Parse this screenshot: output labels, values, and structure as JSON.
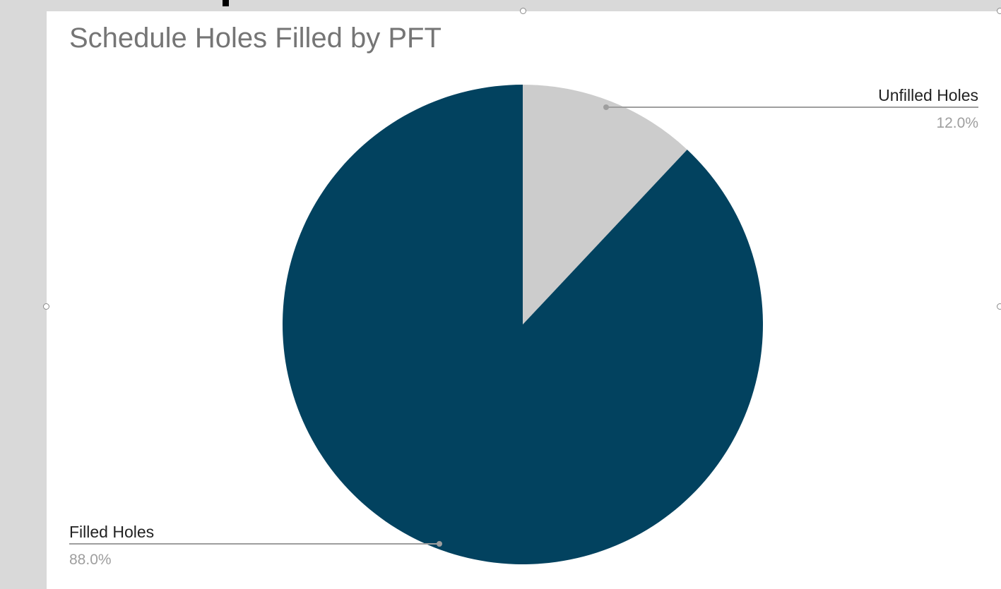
{
  "chart_data": {
    "type": "pie",
    "title": "Schedule Holes Filled by PFT",
    "slices": [
      {
        "label": "Unfilled Holes",
        "value": 12.0,
        "percent_label": "12.0%",
        "color": "#cccccc"
      },
      {
        "label": "Filled Holes",
        "value": 88.0,
        "percent_label": "88.0%",
        "color": "#02425f"
      }
    ],
    "start_angle_deg": 0,
    "direction": "clockwise",
    "legend": "none",
    "label_style": "callout lines with label and percentage"
  },
  "colors": {
    "background": "#d9d9d9",
    "card": "#ffffff",
    "title_text": "#757575",
    "leader_line": "#9e9e9e"
  }
}
